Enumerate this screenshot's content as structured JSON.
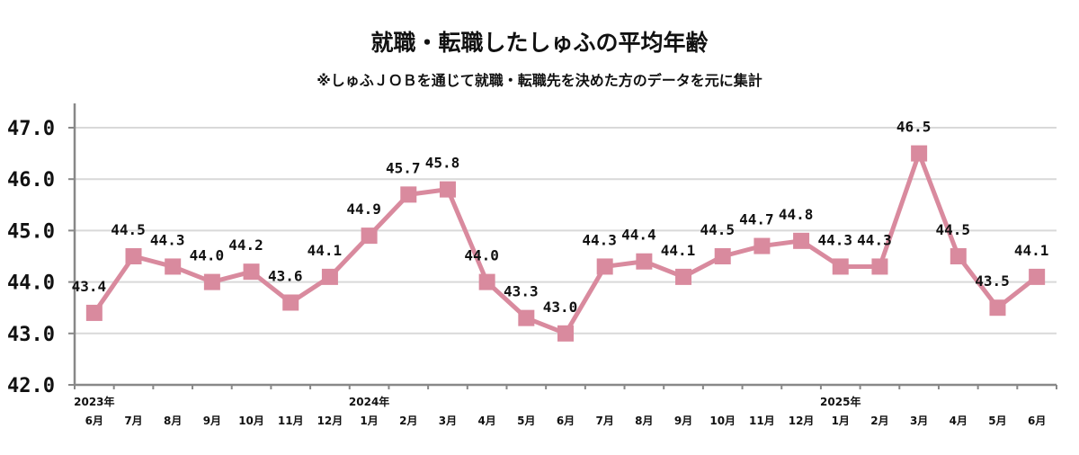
{
  "chart_data": {
    "type": "line",
    "title": "就職・転職したしゅふの平均年齢",
    "subtitle": "※しゅふＪＯＢを通じて就職・転職先を決めた方のデータを元に集計",
    "categories": [
      "6月",
      "7月",
      "8月",
      "9月",
      "10月",
      "11月",
      "12月",
      "1月",
      "2月",
      "3月",
      "4月",
      "5月",
      "6月",
      "7月",
      "8月",
      "9月",
      "10月",
      "11月",
      "12月",
      "1月",
      "2月",
      "3月",
      "4月",
      "5月",
      "6月"
    ],
    "year_labels": [
      {
        "index": 0,
        "label": "2023年"
      },
      {
        "index": 7,
        "label": "2024年"
      },
      {
        "index": 19,
        "label": "2025年"
      }
    ],
    "values": [
      43.4,
      44.5,
      44.3,
      44.0,
      44.2,
      43.6,
      44.1,
      44.9,
      45.7,
      45.8,
      44.0,
      43.3,
      43.0,
      44.3,
      44.4,
      44.1,
      44.5,
      44.7,
      44.8,
      44.3,
      44.3,
      46.5,
      44.5,
      43.5,
      44.1
    ],
    "ylim": [
      42.0,
      47.0
    ],
    "yticks": [
      "42.0",
      "43.0",
      "44.0",
      "45.0",
      "46.0",
      "47.0"
    ],
    "grid": true,
    "marker": "square",
    "color": "#d98a9e"
  }
}
